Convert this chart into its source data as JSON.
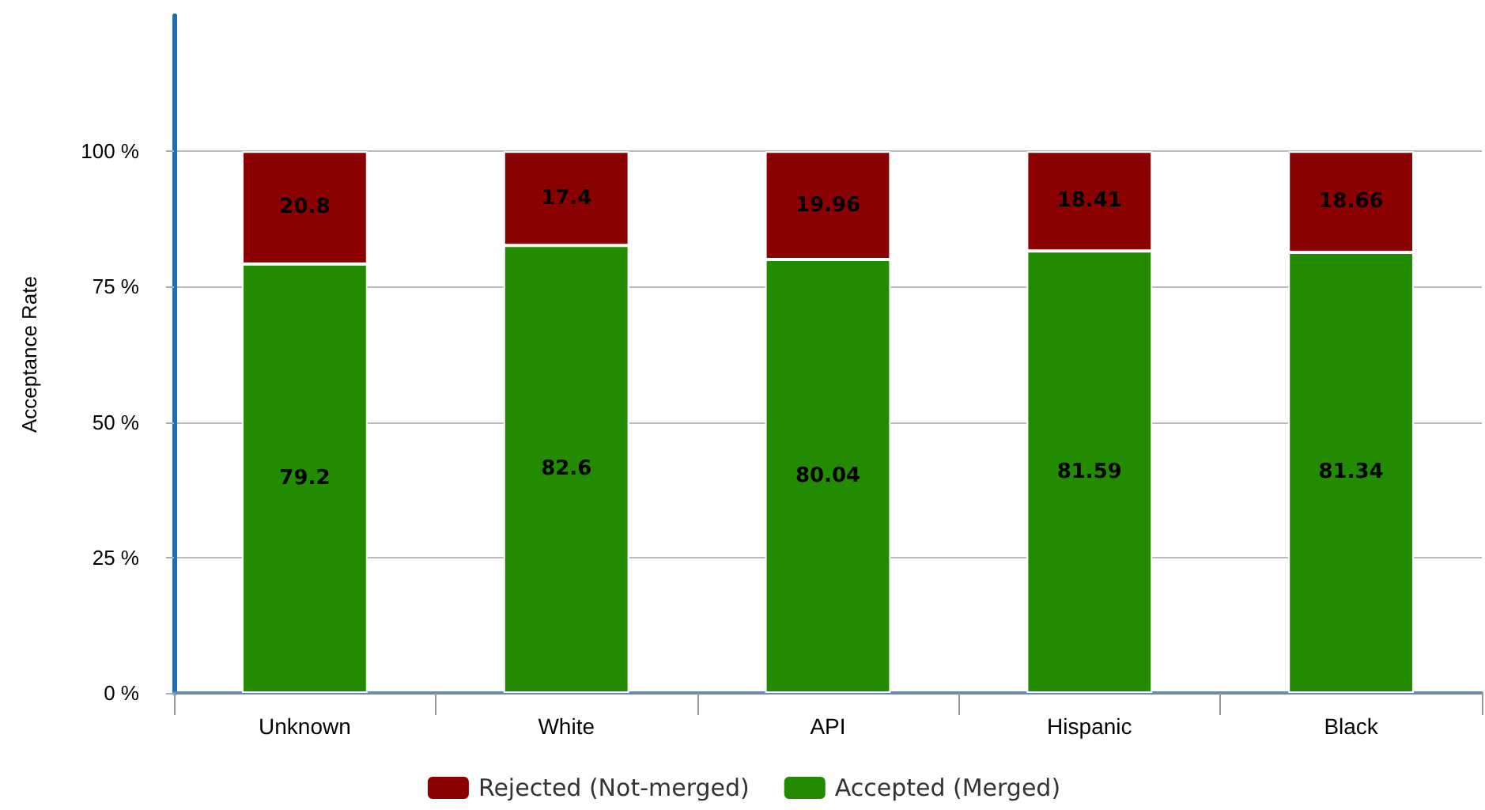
{
  "chart_data": {
    "type": "bar",
    "ylabel": "Acceptance Rate",
    "categories": [
      "Unknown",
      "White",
      "API",
      "Hispanic",
      "Black"
    ],
    "series": [
      {
        "name": "Accepted (Merged)",
        "color": "#228b00",
        "values": [
          79.2,
          82.6,
          80.04,
          81.59,
          81.34
        ]
      },
      {
        "name": "Rejected (Not-merged)",
        "color": "#8b0000",
        "values": [
          20.8,
          17.4,
          19.96,
          18.41,
          18.66
        ]
      }
    ],
    "stacked": true,
    "data_labels": true,
    "ylim": [
      0,
      125
    ],
    "yticks": [
      {
        "value": 0,
        "label": "0 %"
      },
      {
        "value": 25,
        "label": "25 %"
      },
      {
        "value": 50,
        "label": "50 %"
      },
      {
        "value": 75,
        "label": "75 %"
      },
      {
        "value": 100,
        "label": "100 %"
      }
    ],
    "grid": "y",
    "legend": "bottom"
  }
}
